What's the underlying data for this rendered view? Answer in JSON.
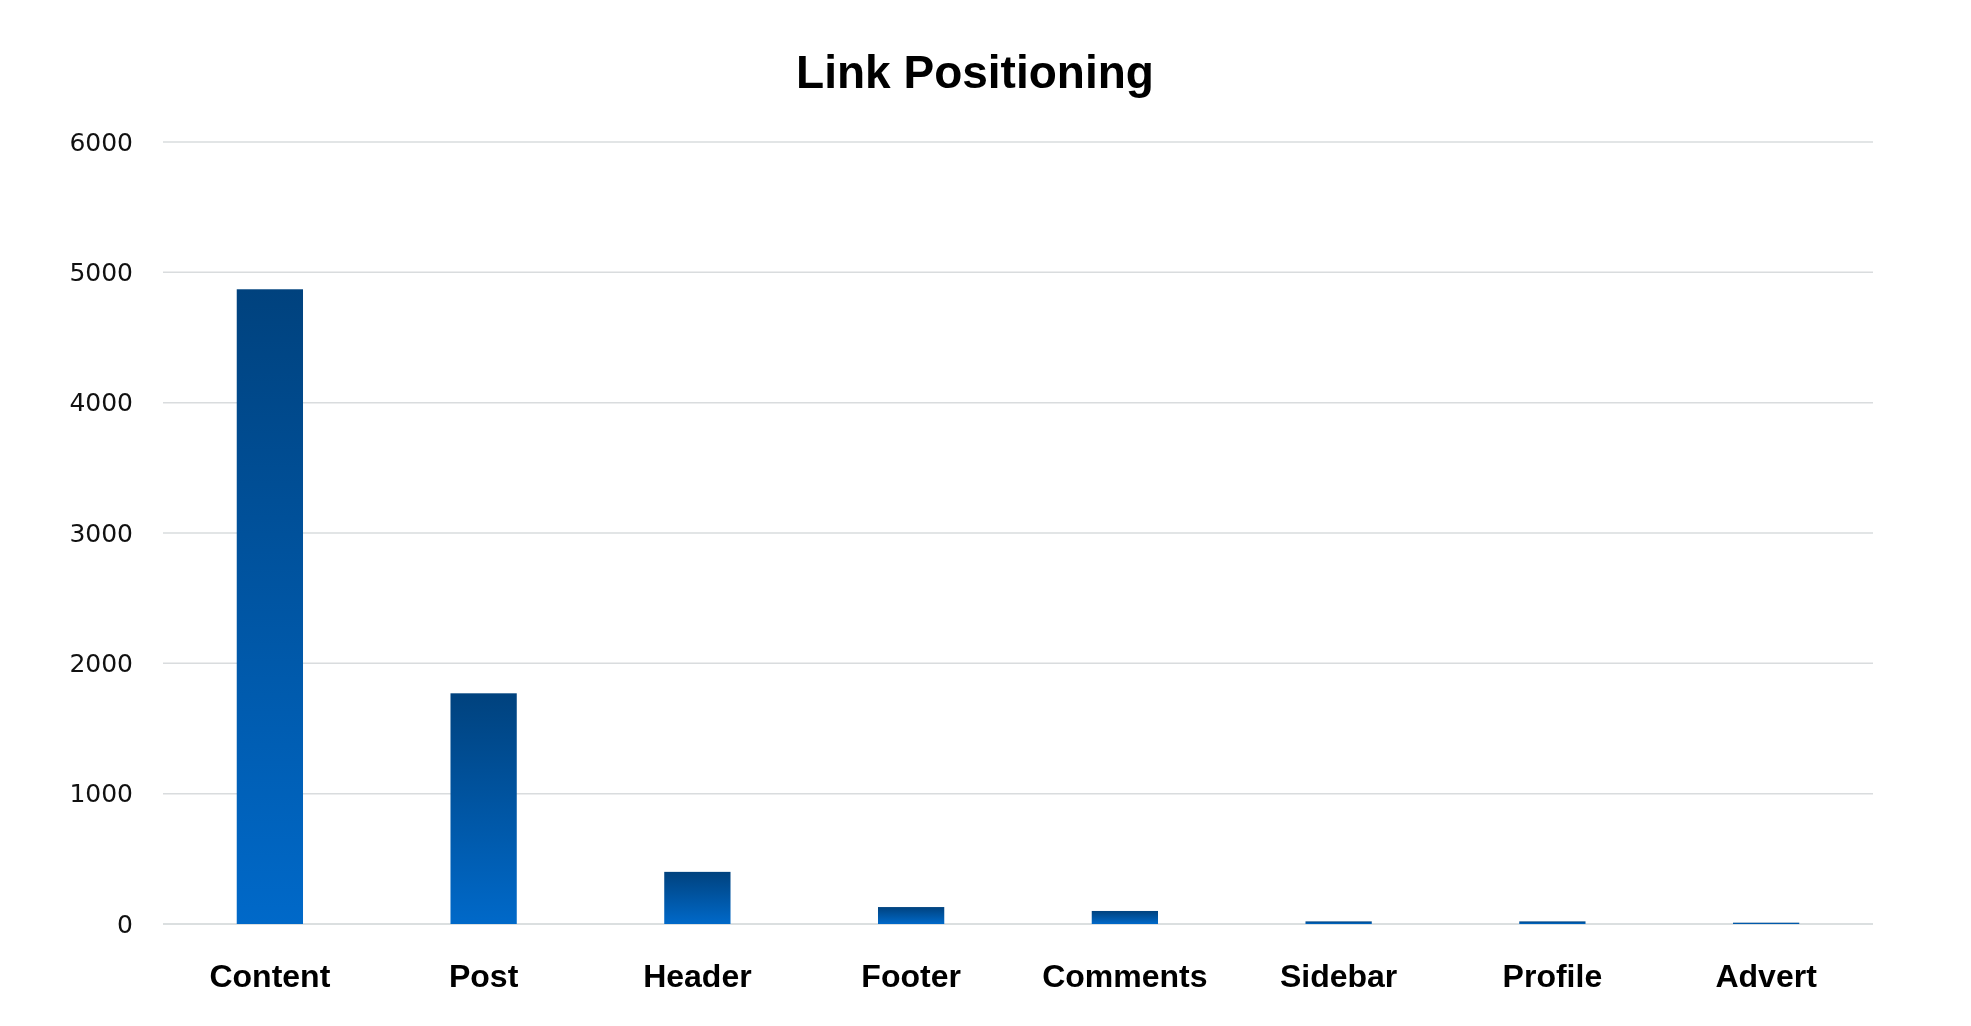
{
  "chart_data": {
    "type": "bar",
    "title": "Link Positioning",
    "categories": [
      "Content",
      "Post",
      "Header",
      "Footer",
      "Comments",
      "Sidebar",
      "Profile",
      "Advert"
    ],
    "values": [
      4870,
      1770,
      400,
      130,
      100,
      20,
      20,
      10
    ],
    "color": "#0058a8",
    "ylim": [
      0,
      6000
    ],
    "yticks": [
      0,
      1000,
      2000,
      3000,
      4000,
      5000,
      6000
    ],
    "grid": "y"
  }
}
